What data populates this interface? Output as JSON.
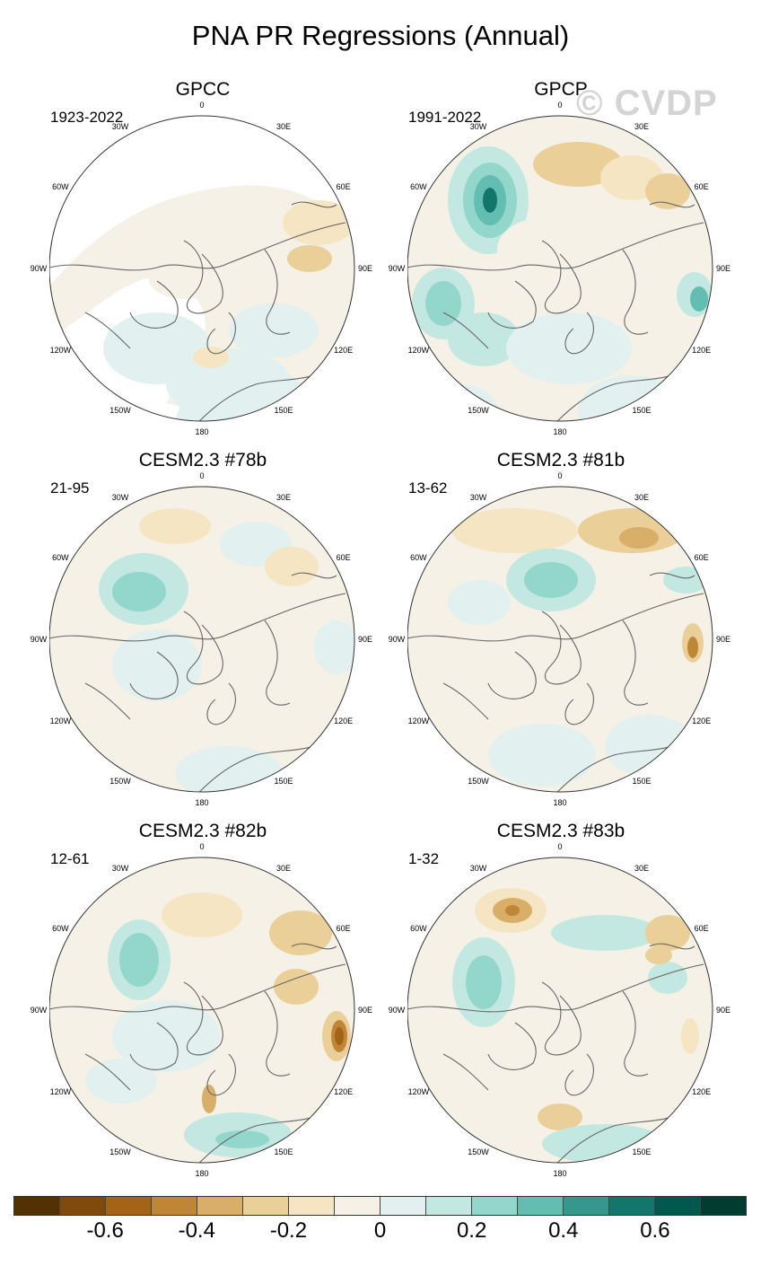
{
  "title": "PNA PR Regressions (Annual)",
  "watermark": "© CVDP",
  "panels": [
    {
      "title": "GPCC",
      "period": "1923-2022",
      "style": "obs_sparse"
    },
    {
      "title": "GPCP",
      "period": "1991-2022",
      "style": "obs_full"
    },
    {
      "title": "CESM2.3 #78b",
      "period": "21-95",
      "style": "model_a"
    },
    {
      "title": "CESM2.3 #81b",
      "period": "13-62",
      "style": "model_b"
    },
    {
      "title": "CESM2.3 #82b",
      "period": "12-61",
      "style": "model_c"
    },
    {
      "title": "CESM2.3 #83b",
      "period": "1-32",
      "style": "model_d"
    }
  ],
  "longitude_labels": [
    "180",
    "150E",
    "120E",
    "90E",
    "60E",
    "30E",
    "0",
    "30W",
    "60W",
    "90W",
    "120W",
    "150W"
  ],
  "colorbar": {
    "colors": [
      "#543005",
      "#7f4b0d",
      "#a36418",
      "#c08638",
      "#d9ae68",
      "#ebcf98",
      "#f5e5c2",
      "#f5f1e6",
      "#e2f1ef",
      "#c3e8e2",
      "#93d6cb",
      "#63bdb0",
      "#36978d",
      "#13766c",
      "#01594e",
      "#003d31"
    ],
    "labels": [
      "-0.6",
      "-0.4",
      "-0.2",
      "0",
      "0.2",
      "0.4",
      "0.6"
    ],
    "levels": [
      -0.7,
      -0.6,
      -0.5,
      -0.4,
      -0.3,
      -0.2,
      -0.1,
      0,
      0.1,
      0.2,
      0.3,
      0.4,
      0.5,
      0.6,
      0.7
    ]
  }
}
